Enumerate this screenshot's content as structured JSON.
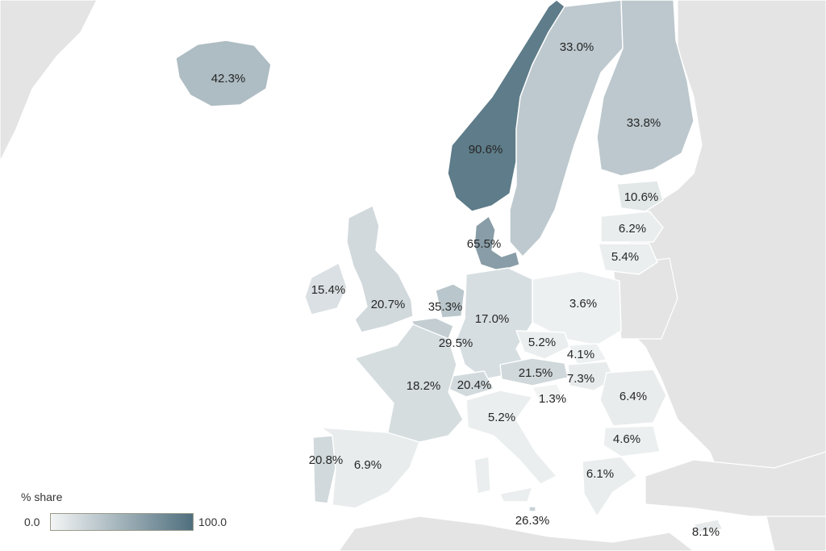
{
  "legend": {
    "title": "% share",
    "min_label": "0.0",
    "max_label": "100.0",
    "range": [
      0,
      100
    ],
    "color_low": "#f3f5f5",
    "color_high": "#4f6f7e"
  },
  "colors": {
    "sea": "#ffffff",
    "land_no_data": "#e4e4e4"
  },
  "countries": [
    {
      "id": "iceland",
      "label": "42.3%",
      "value": 42.3
    },
    {
      "id": "norway",
      "label": "90.6%",
      "value": 90.6
    },
    {
      "id": "sweden",
      "label": "33.0%",
      "value": 33.0
    },
    {
      "id": "finland",
      "label": "33.8%",
      "value": 33.8
    },
    {
      "id": "estonia",
      "label": "10.6%",
      "value": 10.6
    },
    {
      "id": "latvia",
      "label": "6.2%",
      "value": 6.2
    },
    {
      "id": "lithuania",
      "label": "5.4%",
      "value": 5.4
    },
    {
      "id": "denmark",
      "label": "65.5%",
      "value": 65.5
    },
    {
      "id": "ireland",
      "label": "15.4%",
      "value": 15.4
    },
    {
      "id": "united-kingdom",
      "label": "20.7%",
      "value": 20.7
    },
    {
      "id": "netherlands",
      "label": "35.3%",
      "value": 35.3
    },
    {
      "id": "belgium",
      "label": "29.5%",
      "value": 29.5
    },
    {
      "id": "germany",
      "label": "17.0%",
      "value": 17.0
    },
    {
      "id": "poland",
      "label": "3.6%",
      "value": 3.6
    },
    {
      "id": "czechia",
      "label": "5.2%",
      "value": 5.2
    },
    {
      "id": "slovakia",
      "label": "4.1%",
      "value": 4.1
    },
    {
      "id": "austria",
      "label": "21.5%",
      "value": 21.5
    },
    {
      "id": "hungary",
      "label": "7.3%",
      "value": 7.3
    },
    {
      "id": "slovenia",
      "label": "1.3%",
      "value": 1.3
    },
    {
      "id": "switzerland",
      "label": "20.4%",
      "value": 20.4
    },
    {
      "id": "france",
      "label": "18.2%",
      "value": 18.2
    },
    {
      "id": "italy",
      "label": "5.2%",
      "value": 5.2
    },
    {
      "id": "romania",
      "label": "6.4%",
      "value": 6.4
    },
    {
      "id": "bulgaria",
      "label": "4.6%",
      "value": 4.6
    },
    {
      "id": "greece",
      "label": "6.1%",
      "value": 6.1
    },
    {
      "id": "portugal",
      "label": "20.8%",
      "value": 20.8
    },
    {
      "id": "spain",
      "label": "6.9%",
      "value": 6.9
    },
    {
      "id": "malta",
      "label": "26.3%",
      "value": 26.3
    },
    {
      "id": "cyprus",
      "label": "8.1%",
      "value": 8.1
    }
  ]
}
